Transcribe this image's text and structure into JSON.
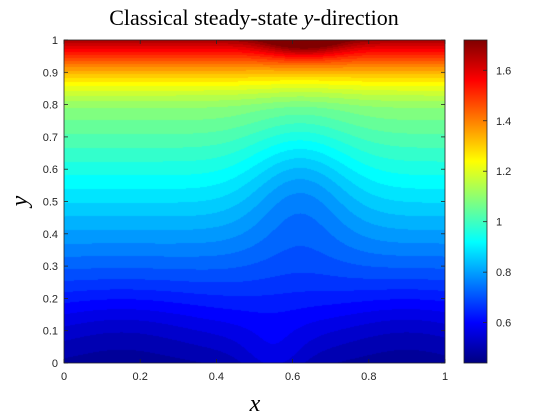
{
  "chart_data": {
    "type": "heatmap",
    "title_prefix": "Classical steady-state ",
    "title_var": "y",
    "title_suffix": "-direction",
    "xlabel": "x",
    "ylabel": "y",
    "xlim": [
      0,
      1
    ],
    "ylim": [
      0,
      1
    ],
    "xticks": [
      "0",
      "0.2",
      "0.4",
      "0.6",
      "0.8",
      "1"
    ],
    "yticks": [
      "0",
      "0.1",
      "0.2",
      "0.3",
      "0.4",
      "0.5",
      "0.6",
      "0.7",
      "0.8",
      "0.9",
      "1"
    ],
    "colorbar": {
      "range": [
        0.44,
        1.72
      ],
      "ticks": [
        "0.6",
        "0.8",
        "1",
        "1.2",
        "1.4",
        "1.6"
      ],
      "colormap": "jet"
    },
    "grid": false,
    "levels": 40
  }
}
